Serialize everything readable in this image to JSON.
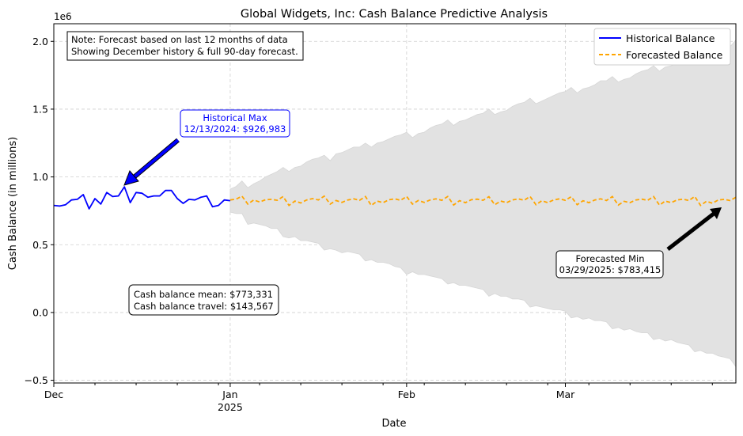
{
  "chart_data": {
    "type": "line",
    "title": "Global Widgets, Inc: Cash Balance Predictive Analysis",
    "xlabel": "Date",
    "ylabel": "Cash Balance (in millions)",
    "y_offset_label": "1e6",
    "ylim": [
      -0.52,
      2.13
    ],
    "xlim_days": [
      0,
      116
    ],
    "yticks": [
      -0.5,
      0.0,
      0.5,
      1.0,
      1.5,
      2.0
    ],
    "ytick_labels": [
      "−0.5",
      "0.0",
      "0.5",
      "1.0",
      "1.5",
      "2.0"
    ],
    "xticks_major": [
      {
        "day": 0,
        "label": "Dec",
        "sub": ""
      },
      {
        "day": 30,
        "label": "Jan",
        "sub": "2025"
      },
      {
        "day": 60,
        "label": "Feb",
        "sub": ""
      },
      {
        "day": 87,
        "label": "Mar",
        "sub": ""
      }
    ],
    "xticks_minor_days": [
      0,
      7,
      14,
      21,
      28,
      35,
      42,
      49,
      56,
      63,
      70,
      77,
      84,
      91,
      98,
      105,
      112
    ],
    "legend": {
      "placement": "top-right",
      "entries": [
        {
          "label": "Historical Balance",
          "color": "#0000ff",
          "style": "solid"
        },
        {
          "label": "Forecasted Balance",
          "color": "#ffa500",
          "style": "dashed"
        }
      ]
    },
    "series": [
      {
        "name": "Historical Balance",
        "color": "#0000ff",
        "x_start_day": 0,
        "values": [
          0.79,
          0.785,
          0.795,
          0.83,
          0.835,
          0.87,
          0.765,
          0.84,
          0.8,
          0.885,
          0.855,
          0.86,
          0.927,
          0.81,
          0.885,
          0.88,
          0.85,
          0.86,
          0.86,
          0.9,
          0.9,
          0.84,
          0.805,
          0.835,
          0.83,
          0.85,
          0.86,
          0.78,
          0.79,
          0.83,
          0.825
        ]
      },
      {
        "name": "Forecasted Balance",
        "color": "#ffa500",
        "x_start_day": 30,
        "values": [
          0.83,
          0.836,
          0.858,
          0.8,
          0.83,
          0.815,
          0.832,
          0.835,
          0.828,
          0.855,
          0.79,
          0.822,
          0.808,
          0.83,
          0.84,
          0.83,
          0.858,
          0.8,
          0.826,
          0.812,
          0.83,
          0.838,
          0.828,
          0.855,
          0.79,
          0.822,
          0.81,
          0.832,
          0.838,
          0.828,
          0.856,
          0.8,
          0.826,
          0.812,
          0.83,
          0.838,
          0.828,
          0.856,
          0.793,
          0.825,
          0.81,
          0.832,
          0.836,
          0.828,
          0.854,
          0.795,
          0.822,
          0.81,
          0.83,
          0.838,
          0.828,
          0.856,
          0.795,
          0.824,
          0.81,
          0.83,
          0.838,
          0.828,
          0.854,
          0.795,
          0.824,
          0.81,
          0.83,
          0.838,
          0.826,
          0.855,
          0.793,
          0.82,
          0.81,
          0.83,
          0.836,
          0.828,
          0.855,
          0.792,
          0.822,
          0.81,
          0.83,
          0.836,
          0.826,
          0.856,
          0.79,
          0.82,
          0.806,
          0.83,
          0.834,
          0.826,
          0.85
        ]
      }
    ],
    "confidence_band": {
      "x_start_day": 30,
      "upper": [
        0.91,
        0.93,
        0.97,
        0.92,
        0.95,
        0.97,
        1.0,
        1.02,
        1.04,
        1.07,
        1.04,
        1.07,
        1.08,
        1.11,
        1.13,
        1.14,
        1.16,
        1.12,
        1.17,
        1.18,
        1.2,
        1.22,
        1.22,
        1.25,
        1.22,
        1.25,
        1.26,
        1.28,
        1.3,
        1.31,
        1.33,
        1.29,
        1.32,
        1.33,
        1.36,
        1.38,
        1.39,
        1.42,
        1.38,
        1.41,
        1.42,
        1.44,
        1.46,
        1.47,
        1.5,
        1.46,
        1.48,
        1.49,
        1.52,
        1.54,
        1.55,
        1.58,
        1.54,
        1.56,
        1.58,
        1.6,
        1.62,
        1.63,
        1.66,
        1.62,
        1.65,
        1.66,
        1.68,
        1.71,
        1.71,
        1.74,
        1.7,
        1.72,
        1.73,
        1.76,
        1.78,
        1.79,
        1.82,
        1.78,
        1.81,
        1.82,
        1.84,
        1.87,
        1.88,
        1.91,
        1.87,
        1.89,
        1.9,
        1.93,
        1.95,
        1.96,
        2.01
      ],
      "lower": [
        0.74,
        0.73,
        0.73,
        0.65,
        0.66,
        0.65,
        0.64,
        0.62,
        0.62,
        0.56,
        0.55,
        0.56,
        0.53,
        0.53,
        0.52,
        0.51,
        0.46,
        0.47,
        0.46,
        0.44,
        0.45,
        0.44,
        0.43,
        0.38,
        0.39,
        0.37,
        0.37,
        0.36,
        0.34,
        0.33,
        0.28,
        0.3,
        0.28,
        0.28,
        0.27,
        0.26,
        0.25,
        0.21,
        0.22,
        0.2,
        0.2,
        0.19,
        0.18,
        0.17,
        0.12,
        0.14,
        0.12,
        0.12,
        0.1,
        0.1,
        0.09,
        0.04,
        0.05,
        0.04,
        0.03,
        0.02,
        0.02,
        0.01,
        -0.04,
        -0.03,
        -0.05,
        -0.04,
        -0.06,
        -0.06,
        -0.07,
        -0.12,
        -0.11,
        -0.13,
        -0.12,
        -0.14,
        -0.15,
        -0.15,
        -0.2,
        -0.19,
        -0.21,
        -0.2,
        -0.22,
        -0.23,
        -0.24,
        -0.29,
        -0.28,
        -0.3,
        -0.3,
        -0.32,
        -0.33,
        -0.34,
        -0.4
      ]
    },
    "annotations": {
      "note": {
        "lines": [
          "Note: Forecast based on last 12 months of data",
          "Showing December history & full 90-day forecast."
        ]
      },
      "historical_max": {
        "lines": [
          "Historical Max",
          "12/13/2024: $926,983"
        ],
        "color": "#0000ff",
        "target_day": 12.4,
        "target_value": 0.927
      },
      "forecast_min": {
        "lines": [
          "Forecasted Min",
          "03/29/2025: $783,415"
        ],
        "color": "#000000",
        "target_day": 113,
        "target_value": 0.783
      },
      "stats": {
        "lines": [
          "Cash balance mean: $773,331",
          "Cash balance travel: $143,567"
        ]
      }
    },
    "grid": true
  }
}
